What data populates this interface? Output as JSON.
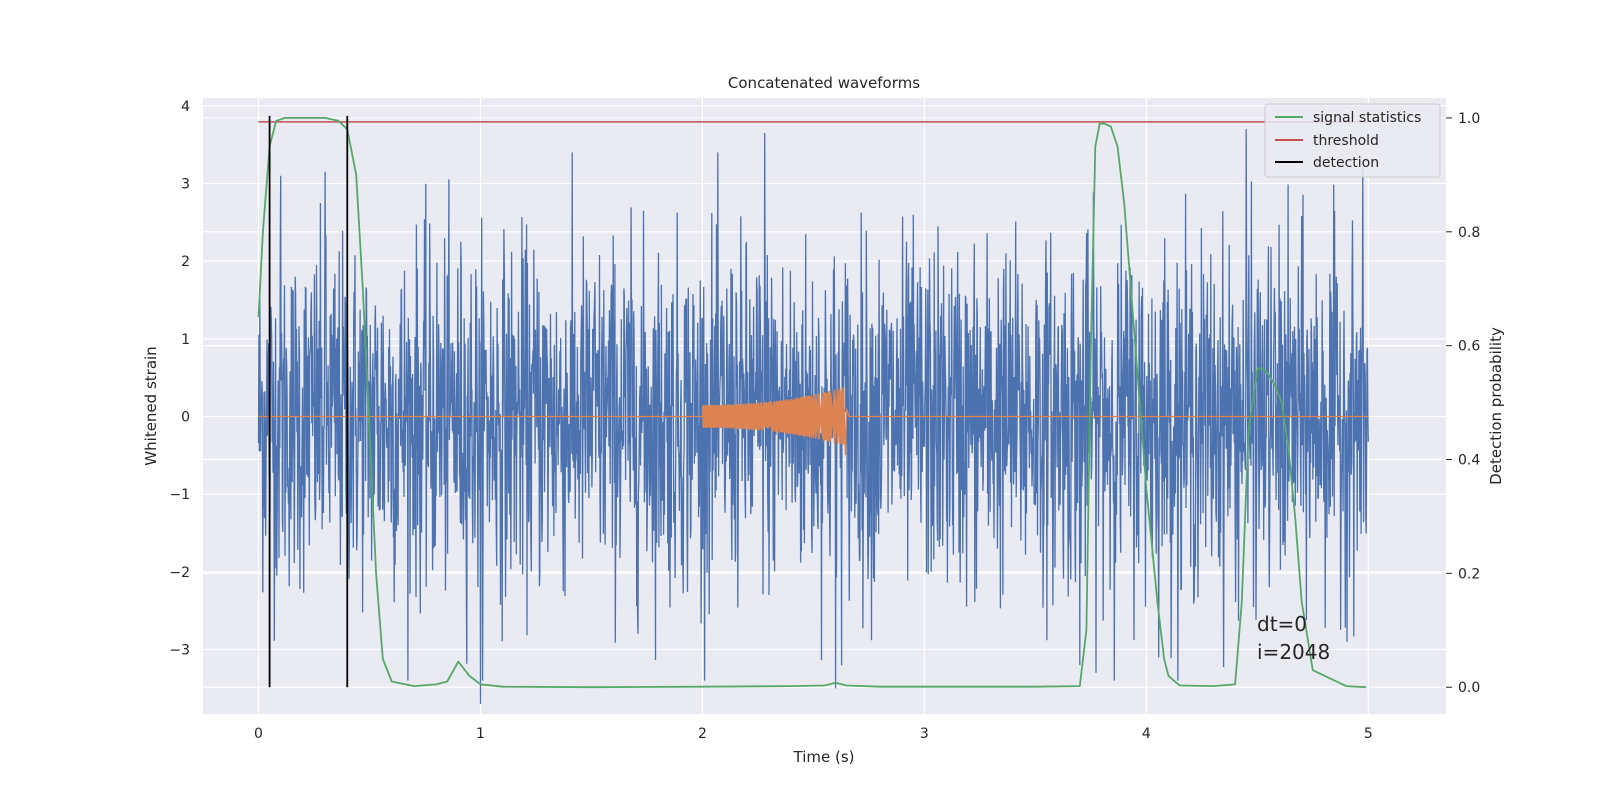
{
  "chart_data": {
    "type": "line",
    "title": "Concatenated waveforms",
    "xlabel": "Time (s)",
    "ylabel_left": "Whitened strain",
    "ylabel_right": "Detection probability",
    "xlim": [
      -0.25,
      5.35
    ],
    "ylim_left": [
      -3.83,
      4.1
    ],
    "ylim_right": [
      -0.047,
      1.035
    ],
    "xticks": [
      0,
      1,
      2,
      3,
      4,
      5
    ],
    "yticks_left": [
      -3,
      -2,
      -1,
      0,
      1,
      2,
      3,
      4
    ],
    "yticks_right": [
      0.0,
      0.2,
      0.4,
      0.6,
      0.8,
      1.0
    ],
    "xtick_labels": [
      "0",
      "1",
      "2",
      "3",
      "4",
      "5"
    ],
    "ytick_left_labels": [
      "−3",
      "−2",
      "−1",
      "0",
      "1",
      "2",
      "3",
      "4"
    ],
    "ytick_right_labels": [
      "0.0",
      "0.2",
      "0.4",
      "0.6",
      "0.8",
      "1.0"
    ],
    "grid": true,
    "legend_position": "top-right",
    "legend": [
      "signal statistics",
      "threshold",
      "detection"
    ],
    "colors": {
      "noise": "#4c72b0",
      "injection": "#dd8452",
      "signal_statistics": "#55a868",
      "threshold": "#c44e52",
      "detection": "#000000",
      "background": "#eaeaf2"
    },
    "noise_strain": {
      "x_range": [
        0,
        5
      ],
      "typical_amplitude": 1.1,
      "peak_points": [
        [
          0.1,
          3.1
        ],
        [
          0.3,
          3.15
        ],
        [
          1.0,
          -3.7
        ],
        [
          2.28,
          3.65
        ],
        [
          2.6,
          -3.5
        ],
        [
          3.7,
          -3.2
        ],
        [
          4.45,
          3.7
        ]
      ]
    },
    "injected_chirp": {
      "x_range": [
        2.0,
        2.64
      ],
      "start_amplitude": 0.15,
      "end_amplitude": 0.38
    },
    "signal_statistics": {
      "x": [
        0.0,
        0.02,
        0.05,
        0.08,
        0.12,
        0.2,
        0.3,
        0.36,
        0.4,
        0.44,
        0.47,
        0.5,
        0.53,
        0.56,
        0.6,
        0.7,
        0.8,
        0.85,
        0.9,
        0.95,
        1.0,
        1.1,
        1.5,
        2.0,
        2.4,
        2.55,
        2.6,
        2.65,
        2.8,
        3.2,
        3.5,
        3.7,
        3.73,
        3.75,
        3.77,
        3.79,
        3.81,
        3.84,
        3.87,
        3.9,
        3.95,
        4.0,
        4.05,
        4.08,
        4.1,
        4.15,
        4.3,
        4.4,
        4.43,
        4.46,
        4.5,
        4.52,
        4.55,
        4.58,
        4.61,
        4.64,
        4.67,
        4.7,
        4.75,
        4.9,
        4.99
      ],
      "y": [
        0.65,
        0.8,
        0.95,
        0.995,
        1.0,
        1.0,
        1.0,
        0.995,
        0.98,
        0.9,
        0.7,
        0.45,
        0.2,
        0.05,
        0.01,
        0.002,
        0.005,
        0.01,
        0.045,
        0.02,
        0.005,
        0.001,
        0.0,
        0.001,
        0.002,
        0.003,
        0.008,
        0.003,
        0.001,
        0.001,
        0.001,
        0.002,
        0.1,
        0.6,
        0.95,
        0.99,
        0.99,
        0.985,
        0.95,
        0.85,
        0.6,
        0.35,
        0.15,
        0.05,
        0.02,
        0.003,
        0.002,
        0.005,
        0.15,
        0.45,
        0.56,
        0.56,
        0.55,
        0.53,
        0.5,
        0.42,
        0.3,
        0.15,
        0.03,
        0.002,
        0.0
      ]
    },
    "threshold": {
      "value": 0.993,
      "x_range": [
        0,
        5
      ]
    },
    "detections": [
      0.05,
      0.4
    ],
    "annotations": [
      "dt=0",
      "i=2048"
    ]
  }
}
